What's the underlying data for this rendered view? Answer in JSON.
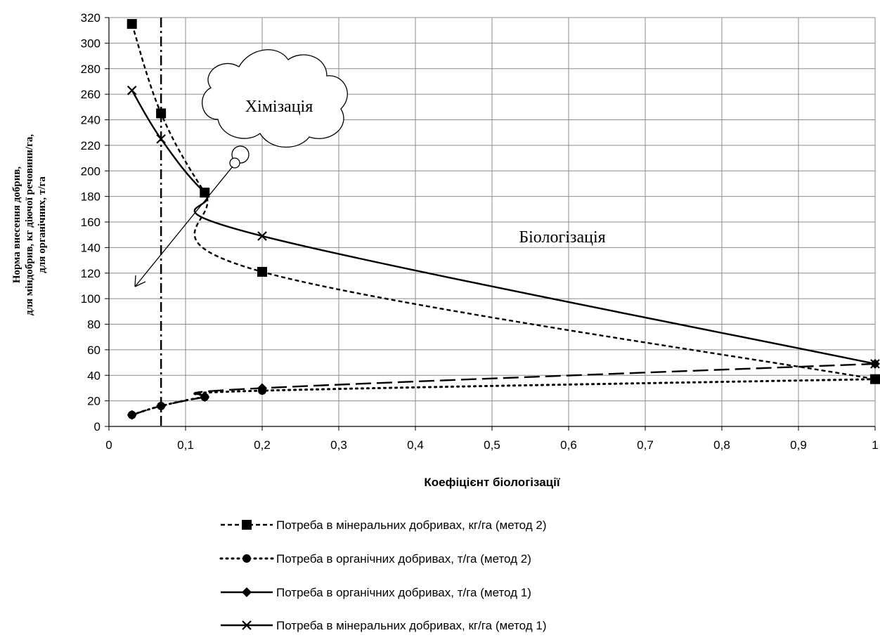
{
  "chart_data": {
    "type": "line",
    "xlabel": "Коефіцієнт біологізації",
    "ylabel_lines": [
      "Норма внесення добрив,",
      "для міндобрив, кг діючої речовини/га,",
      "для органічних, т/га"
    ],
    "xlim": [
      0,
      1
    ],
    "ylim": [
      0,
      320
    ],
    "x_ticks": [
      "0",
      "0,1",
      "0,2",
      "0,3",
      "0,4",
      "0,5",
      "0,6",
      "0,7",
      "0,8",
      "0,9",
      "1"
    ],
    "y_ticks": [
      "0",
      "20",
      "40",
      "60",
      "80",
      "100",
      "120",
      "140",
      "160",
      "180",
      "200",
      "220",
      "240",
      "260",
      "280",
      "300",
      "320"
    ],
    "grid": true,
    "legend_position": "bottom",
    "vertical_reference_x": 0.068,
    "series": [
      {
        "name": "Потреба в мінеральних добривах, кг/га (метод 2)",
        "style": "short-dash",
        "marker": "square",
        "x": [
          0.03,
          0.068,
          0.125,
          0.2,
          1.0
        ],
        "y": [
          315,
          245,
          183,
          121,
          37
        ]
      },
      {
        "name": "Потреба в органічних добривах, т/га (метод 2)",
        "style": "dotted",
        "marker": "circle",
        "x": [
          0.03,
          0.068,
          0.125,
          0.2,
          1.0
        ],
        "y": [
          9,
          16,
          23,
          28,
          37
        ]
      },
      {
        "name": "Потреба в органічних добривах, т/га (метод 1)",
        "style": "long-dash",
        "legend_style": "solid",
        "marker": "diamond",
        "x": [
          0.03,
          0.068,
          0.125,
          0.2,
          1.0
        ],
        "y": [
          9,
          16,
          23,
          30,
          49
        ]
      },
      {
        "name": "Потреба в мінеральних добривах, кг/га (метод 1)",
        "style": "solid",
        "marker": "x",
        "x": [
          0.03,
          0.068,
          0.125,
          0.2,
          1.0
        ],
        "y": [
          263,
          225,
          183,
          149,
          49
        ]
      }
    ],
    "annotations": [
      {
        "text": "Хімізація",
        "shape": "thought-cloud"
      },
      {
        "text": "Біологізація",
        "shape": "text"
      }
    ]
  }
}
